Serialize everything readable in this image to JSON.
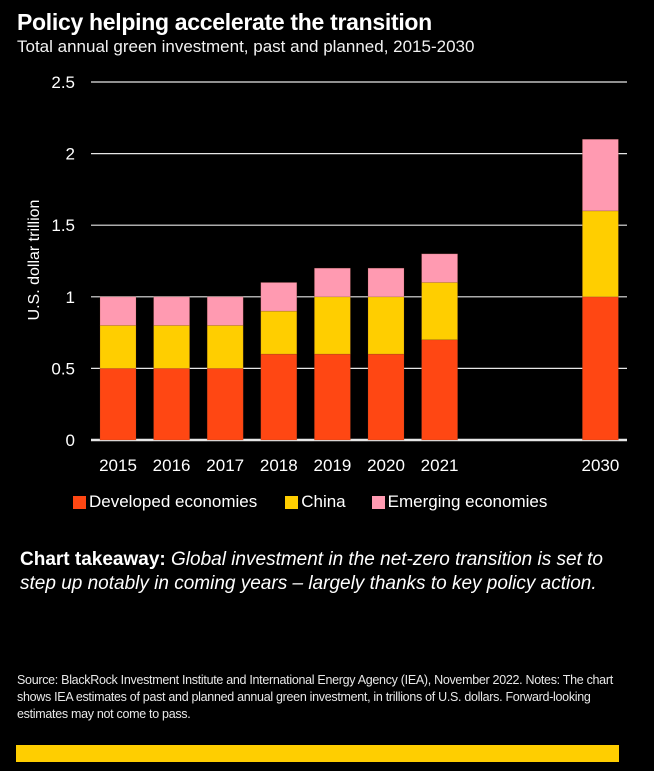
{
  "header": {
    "title": "Policy helping accelerate the transition",
    "subtitle": "Total annual green investment, past and planned, 2015-2030"
  },
  "chart_data": {
    "type": "bar",
    "stacked": true,
    "title": "Policy helping accelerate the transition",
    "subtitle": "Total annual green investment, past and planned, 2015-2030",
    "xlabel": "",
    "ylabel": "U.S. dollar trillion",
    "ylim": [
      0,
      2.5
    ],
    "yticks": [
      0,
      0.5,
      1,
      1.5,
      2,
      2.5
    ],
    "ytick_labels": [
      "0",
      "0.5",
      "1",
      "1.5",
      "2",
      "2.5"
    ],
    "grid": true,
    "categories": [
      "2015",
      "2016",
      "2017",
      "2018",
      "2019",
      "2020",
      "2021",
      "2030"
    ],
    "category_positions": [
      2015,
      2016,
      2017,
      2018,
      2019,
      2020,
      2021,
      2024
    ],
    "series": [
      {
        "name": "Developed economies",
        "color": "#ff4713",
        "values": [
          0.5,
          0.5,
          0.5,
          0.6,
          0.6,
          0.6,
          0.7,
          1.0
        ]
      },
      {
        "name": "China",
        "color": "#ffce00",
        "values": [
          0.3,
          0.3,
          0.3,
          0.3,
          0.4,
          0.4,
          0.4,
          0.6
        ]
      },
      {
        "name": "Emerging economies",
        "color": "#ff9ab1",
        "values": [
          0.2,
          0.2,
          0.2,
          0.2,
          0.2,
          0.2,
          0.2,
          0.5
        ]
      }
    ],
    "legend_position": "bottom"
  },
  "takeaway": {
    "label": "Chart takeaway:",
    "text": " Global investment in the net-zero transition is set to step up notably in coming years – largely thanks to key policy action."
  },
  "source": "Source: BlackRock Investment Institute and International Energy Agency (IEA), November 2022. Notes: The chart shows IEA estimates of past and planned annual green investment, in trillions of U.S. dollars. Forward-looking estimates may not come to pass.",
  "colors": {
    "background": "#000000",
    "accent_bar": "#ffce00"
  }
}
